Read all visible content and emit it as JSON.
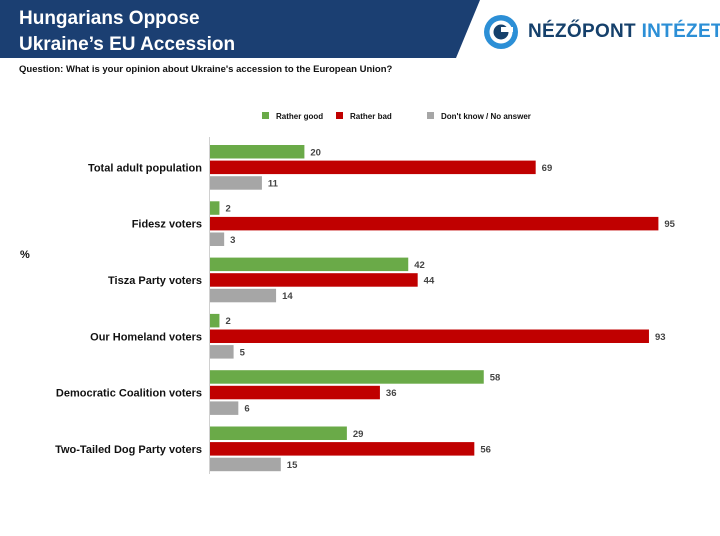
{
  "header": {
    "title_line_1": "Hungarians Oppose",
    "title_line_2": "Ukraine’s EU Accession",
    "banner_color": "#1b3f72"
  },
  "logo": {
    "word_1": "NÉZŐPONT",
    "word_2": "INTÉZET",
    "color_dark": "#15406b",
    "color_light": "#2c8fd6"
  },
  "question": "Question: What is your opinion about Ukraine's accession to the European Union?",
  "chart_data": {
    "type": "bar",
    "orientation": "horizontal",
    "unit_label": "%",
    "categories": [
      "Total adult population",
      "Fidesz voters",
      "Tisza Party voters",
      "Our Homeland voters",
      "Democratic Coalition voters",
      "Two-Tailed Dog Party voters"
    ],
    "series": [
      {
        "name": "Rather good",
        "color": "#6aaa48",
        "values": [
          20,
          2,
          42,
          2,
          58,
          29
        ]
      },
      {
        "name": "Rather bad",
        "color": "#c00000",
        "values": [
          69,
          95,
          44,
          93,
          36,
          56
        ]
      },
      {
        "name": "Don't know / No answer",
        "color": "#a6a6a6",
        "values": [
          11,
          3,
          14,
          5,
          6,
          15
        ]
      }
    ],
    "xlim": [
      0,
      100
    ],
    "legend_position": "top",
    "grid": false
  }
}
